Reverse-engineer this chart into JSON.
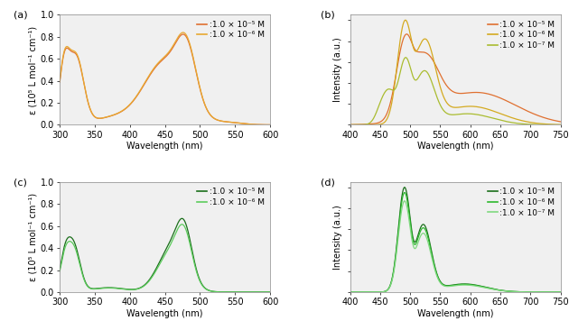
{
  "panel_a": {
    "xlabel": "Wavelength (nm)",
    "ylabel": "ε (10⁵ L mol⁻¹ cm⁻¹)",
    "xlim": [
      300,
      600
    ],
    "ylim": [
      0,
      1.0
    ],
    "yticks": [
      0,
      0.2,
      0.4,
      0.6,
      0.8,
      1.0
    ],
    "xticks": [
      300,
      350,
      400,
      450,
      500,
      550,
      600
    ],
    "colors": [
      "#E07030",
      "#E8A830"
    ],
    "labels": [
      ":1.0 × 10⁻⁵ M",
      ":1.0 × 10⁻⁶ M"
    ]
  },
  "panel_b": {
    "xlabel": "Wavelength (nm)",
    "ylabel": "Intensity (a.u.)",
    "xlim": [
      400,
      750
    ],
    "ylim": [
      0,
      1.05
    ],
    "xticks": [
      400,
      450,
      500,
      550,
      600,
      650,
      700,
      750
    ],
    "colors": [
      "#E07030",
      "#D4AA20",
      "#AABC30"
    ],
    "labels": [
      ":1.0 × 10⁻⁵ M",
      ":1.0 × 10⁻⁶ M",
      ":1.0 × 10⁻⁷ M"
    ]
  },
  "panel_c": {
    "xlabel": "Wavelength (nm)",
    "ylabel": "ε (10⁵ L mol⁻¹ cm⁻¹)",
    "xlim": [
      300,
      600
    ],
    "ylim": [
      0,
      1.0
    ],
    "yticks": [
      0,
      0.2,
      0.4,
      0.6,
      0.8,
      1.0
    ],
    "xticks": [
      300,
      350,
      400,
      450,
      500,
      550,
      600
    ],
    "colors": [
      "#1a6e1a",
      "#5ccc5c"
    ],
    "labels": [
      ":1.0 × 10⁻⁵ M",
      ":1.0 × 10⁻⁶ M"
    ]
  },
  "panel_d": {
    "xlabel": "Wavelength (nm)",
    "ylabel": "Intensity (a.u.)",
    "xlim": [
      400,
      750
    ],
    "ylim": [
      0,
      1.05
    ],
    "xticks": [
      400,
      450,
      500,
      550,
      600,
      650,
      700,
      750
    ],
    "colors": [
      "#1a6e1a",
      "#2db82d",
      "#80d880"
    ],
    "labels": [
      ":1.0 × 10⁻⁵ M",
      ":1.0 × 10⁻⁶ M",
      ":1.0 × 10⁻⁷ M"
    ]
  },
  "background_color": "#ffffff",
  "ax_facecolor": "#f0f0f0",
  "font_size": 7,
  "legend_font_size": 6.5
}
